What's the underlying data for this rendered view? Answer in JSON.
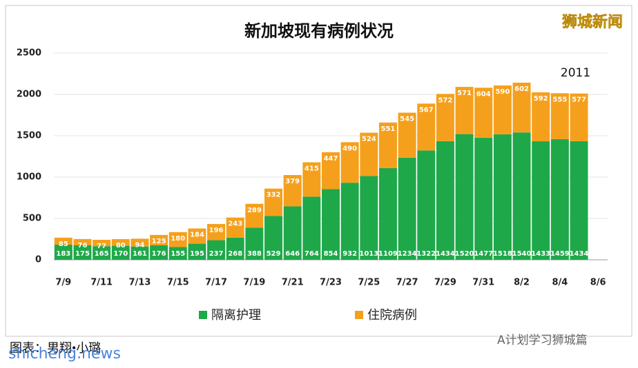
{
  "chart_data": {
    "type": "stacked_bar",
    "title": "新加坡现有病例状况",
    "categories": [
      "7/9",
      null,
      "7/11",
      null,
      "7/13",
      null,
      "7/15",
      null,
      "7/17",
      null,
      "7/19",
      null,
      "7/21",
      null,
      "7/23",
      null,
      "7/25",
      null,
      "7/27",
      null,
      "7/29",
      null,
      "7/31",
      null,
      "8/2",
      null,
      "8/4",
      null,
      "8/6"
    ],
    "series": [
      {
        "name": "隔离护理",
        "color": "#1fa84a",
        "values": [
          183,
          175,
          165,
          170,
          161,
          176,
          155,
          195,
          237,
          268,
          388,
          529,
          646,
          764,
          854,
          932,
          1013,
          1109,
          1234,
          1322,
          1434,
          1520,
          1477,
          1518,
          1540,
          1433,
          1459,
          1434,
          null
        ]
      },
      {
        "name": "住院病例",
        "color": "#f5a01c",
        "values": [
          85,
          76,
          77,
          80,
          94,
          125,
          180,
          184,
          196,
          243,
          289,
          332,
          379,
          415,
          447,
          490,
          524,
          551,
          545,
          567,
          572,
          571,
          604,
          590,
          602,
          592,
          555,
          577,
          null
        ]
      }
    ],
    "ylim": [
      0,
      2500
    ],
    "yticks": [
      0,
      500,
      1000,
      1500,
      2000,
      2500
    ],
    "grid": true,
    "annotation": "2011"
  },
  "watermark": "狮城新闻",
  "credit": "图表：男翔•小璐",
  "site": "shicheng.news",
  "account": "A计划学习狮城篇"
}
